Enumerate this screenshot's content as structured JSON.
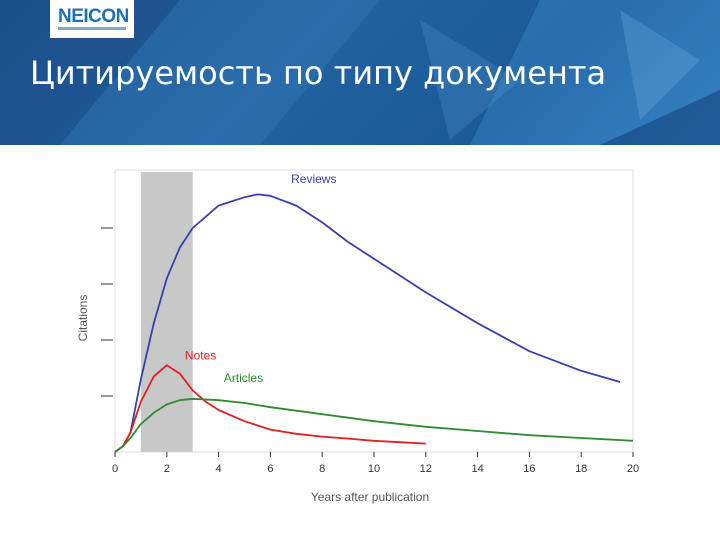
{
  "header": {
    "logo": "NEICON",
    "title": "Цитируемость по типу документа",
    "bg_color": "#1f5f9e"
  },
  "chart_data": {
    "type": "line",
    "xlabel": "Years after publication",
    "ylabel": "Citations",
    "xlim": [
      0,
      20
    ],
    "ylim": [
      0,
      100
    ],
    "x_ticks": [
      0,
      2,
      4,
      6,
      8,
      10,
      12,
      14,
      16,
      18,
      20
    ],
    "shaded_region": {
      "x": [
        1,
        3
      ],
      "color": "#c8c8c8"
    },
    "grid": false,
    "series": [
      {
        "name": "Reviews",
        "color": "#3b3fae",
        "x": [
          0,
          0.3,
          0.6,
          1,
          1.5,
          2,
          2.5,
          3,
          4,
          5,
          5.5,
          6,
          7,
          8,
          9,
          10,
          12,
          14,
          16,
          18,
          19.5
        ],
        "y": [
          0,
          2,
          7,
          26,
          46,
          62,
          73,
          80,
          88,
          91,
          92,
          91.5,
          88,
          82,
          75,
          69,
          57,
          46,
          36,
          29,
          25
        ]
      },
      {
        "name": "Notes",
        "color": "#e02020",
        "x": [
          0,
          0.3,
          0.6,
          1,
          1.5,
          2,
          2.5,
          3,
          3.5,
          4,
          5,
          6,
          7,
          8,
          9,
          10,
          11,
          12
        ],
        "y": [
          0,
          2,
          7,
          18,
          27,
          31,
          28,
          22,
          18,
          15,
          11,
          8,
          6.5,
          5.5,
          4.8,
          4,
          3.5,
          3
        ]
      },
      {
        "name": "Articles",
        "color": "#2e8b2e",
        "x": [
          0,
          0.3,
          0.6,
          1,
          1.5,
          2,
          2.5,
          3,
          4,
          5,
          6,
          8,
          10,
          12,
          14,
          16,
          18,
          20
        ],
        "y": [
          0,
          2,
          5,
          10,
          14,
          17,
          18.5,
          19,
          18.5,
          17.5,
          16,
          13.5,
          11,
          9,
          7.5,
          6,
          5,
          4
        ]
      }
    ]
  }
}
